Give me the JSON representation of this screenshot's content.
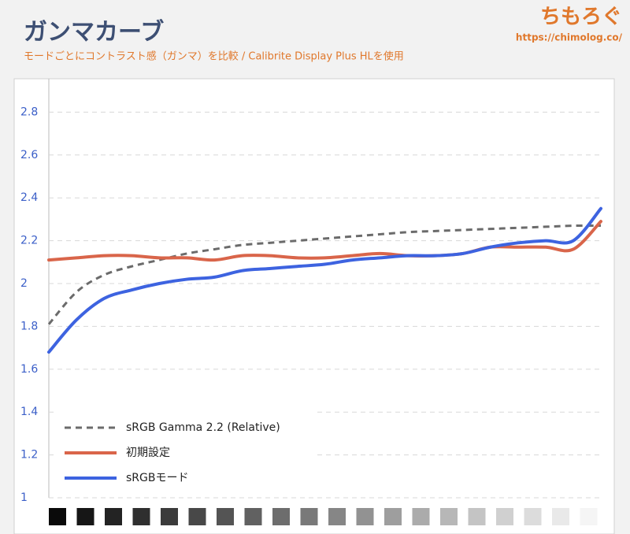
{
  "chart_data": {
    "type": "line",
    "title": "ガンマカーブ",
    "subtitle": "モードごとにコントラスト感（ガンマ）を比較 / Calibrite Display Plus HLを使用",
    "logo": "ちもろぐ",
    "url": "https://chimolog.co/",
    "categories": [
      null,
      null,
      null,
      null,
      null,
      null,
      null,
      null,
      null,
      null,
      null,
      null,
      null,
      null,
      null,
      null,
      null,
      null,
      null,
      null,
      null
    ],
    "series": [
      {
        "name": "sRGB Gamma 2.2 (Relative)",
        "color": "#6b6b6b",
        "dashed": true,
        "values": [
          1.81,
          1.96,
          2.04,
          2.08,
          2.11,
          2.14,
          2.16,
          2.18,
          2.19,
          2.2,
          2.21,
          2.22,
          2.23,
          2.24,
          2.245,
          2.25,
          2.255,
          2.26,
          2.265,
          2.27,
          2.27
        ]
      },
      {
        "name": "初期設定",
        "color": "#d9654a",
        "values": [
          2.11,
          2.12,
          2.13,
          2.13,
          2.12,
          2.12,
          2.11,
          2.13,
          2.13,
          2.12,
          2.12,
          2.13,
          2.14,
          2.13,
          2.13,
          2.14,
          2.17,
          2.17,
          2.17,
          2.16,
          2.29
        ]
      },
      {
        "name": "sRGBモード",
        "color": "#3d63e0",
        "values": [
          1.68,
          1.83,
          1.93,
          1.97,
          2.0,
          2.02,
          2.03,
          2.06,
          2.07,
          2.08,
          2.09,
          2.11,
          2.12,
          2.13,
          2.13,
          2.14,
          2.17,
          2.19,
          2.2,
          2.2,
          2.35
        ]
      }
    ],
    "ylim": [
      1,
      2.95
    ],
    "yticks": [
      1,
      1.2,
      1.4,
      1.6,
      1.8,
      2,
      2.2,
      2.4,
      2.6,
      2.8
    ],
    "grid": true
  }
}
